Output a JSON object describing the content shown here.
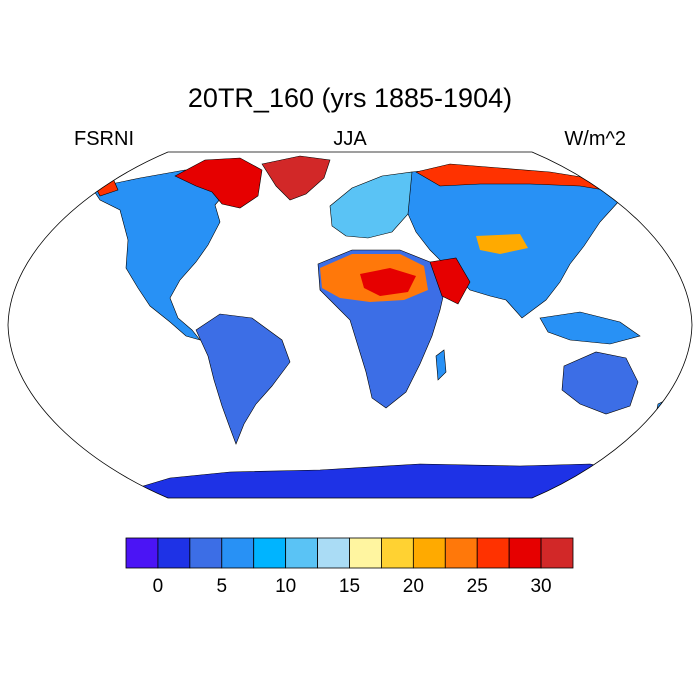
{
  "title": "20TR_160 (yrs 1885-1904)",
  "left_label": "FSRNI",
  "center_label": "JJA",
  "right_label": "W/m^2",
  "colorbar": {
    "colors": [
      "#4b14f5",
      "#1e32e6",
      "#3c6ee6",
      "#2891f5",
      "#00b4ff",
      "#5ac3f5",
      "#aadcf5",
      "#fff5a0",
      "#ffd232",
      "#ffaa00",
      "#ff780a",
      "#ff3200",
      "#e60000",
      "#d22828"
    ],
    "tick_labels": [
      "0",
      "5",
      "10",
      "15",
      "20",
      "25",
      "30"
    ],
    "tick_values": [
      0,
      5,
      10,
      15,
      20,
      25,
      30
    ],
    "levels": [
      -2.5,
      0,
      2.5,
      5,
      7.5,
      10,
      12.5,
      15,
      17.5,
      20,
      22.5,
      25,
      27.5,
      30,
      32.5
    ]
  },
  "map": {
    "projection": "Robinson",
    "ocean_color": "#ffffff",
    "regions": [
      {
        "name": "Greenland",
        "value": 29
      },
      {
        "name": "Canadian Arctic Archipelago",
        "value": 28
      },
      {
        "name": "North America",
        "value": 4
      },
      {
        "name": "South America",
        "value": 3
      },
      {
        "name": "Europe",
        "value": 9
      },
      {
        "name": "Siberia Arctic coast",
        "value": 28
      },
      {
        "name": "Asia",
        "value": 10
      },
      {
        "name": "Sahara",
        "value": 24
      },
      {
        "name": "Arabia",
        "value": 25
      },
      {
        "name": "Africa south of Sahara",
        "value": 5
      },
      {
        "name": "Australia",
        "value": 3
      },
      {
        "name": "Antarctica",
        "value": 1
      }
    ]
  }
}
